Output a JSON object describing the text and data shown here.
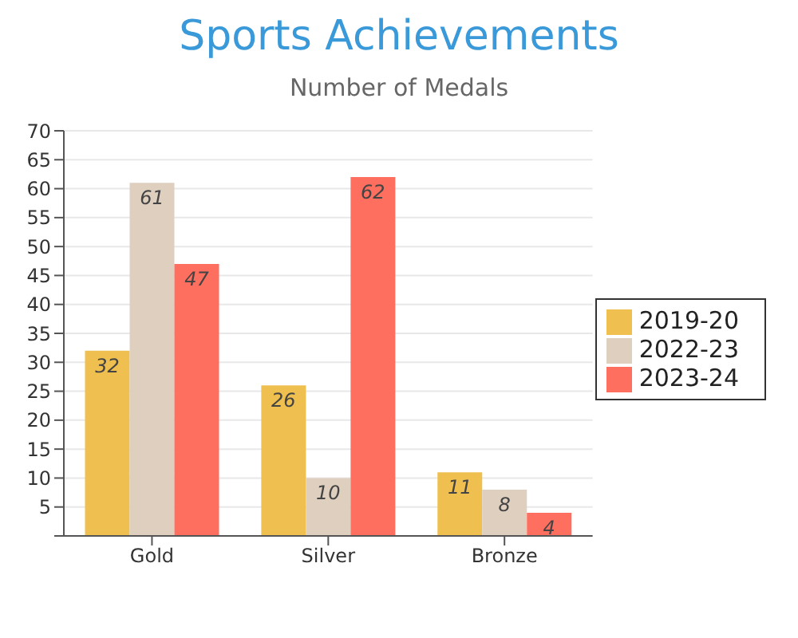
{
  "chart_data": {
    "type": "bar",
    "title": "Sports Achievements",
    "subtitle": "Number of Medals",
    "categories": [
      "Gold",
      "Silver",
      "Bronze"
    ],
    "series": [
      {
        "name": "2019-20",
        "color": "#efbf4f",
        "values": [
          32,
          26,
          11
        ]
      },
      {
        "name": "2022-23",
        "color": "#dfcfbf",
        "values": [
          61,
          10,
          8
        ]
      },
      {
        "name": "2023-24",
        "color": "#ff6f5f",
        "values": [
          47,
          62,
          4
        ]
      }
    ],
    "ylim": [
      0,
      70
    ],
    "yticks": [
      {
        "value": 0,
        "label": null
      },
      5,
      10,
      15,
      20,
      25,
      30,
      35,
      40,
      45,
      50,
      55,
      60,
      65,
      70
    ],
    "grid": "y",
    "legend": "right",
    "data_labels": true
  }
}
